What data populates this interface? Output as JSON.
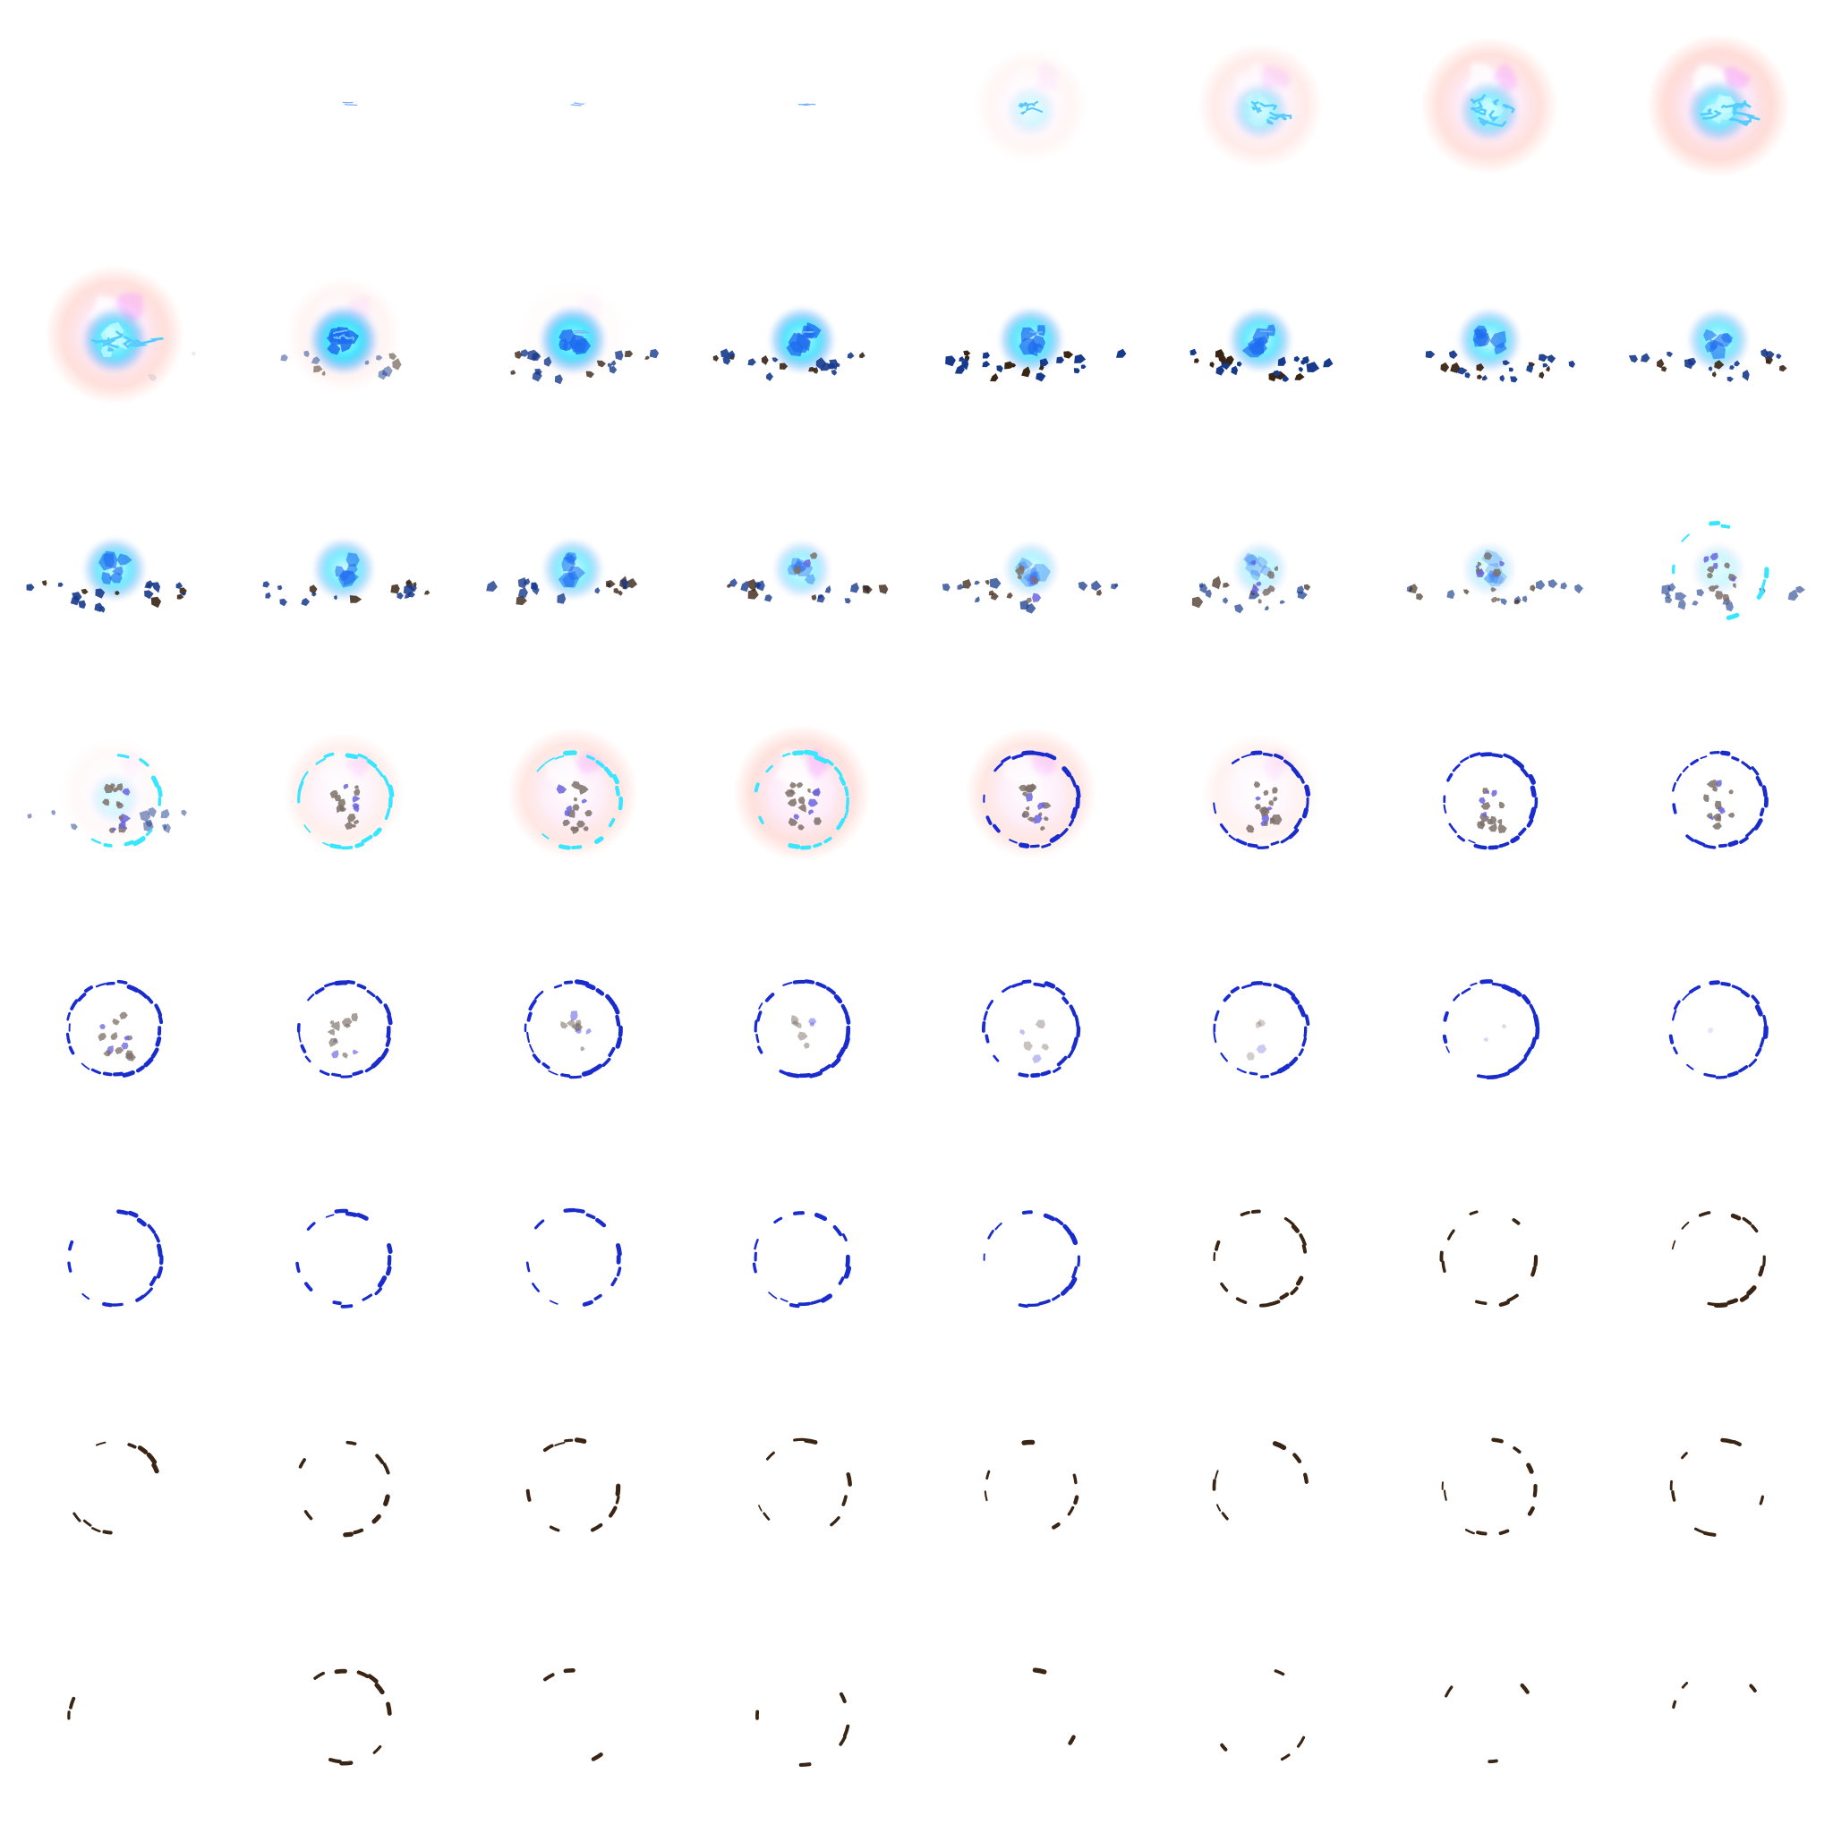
{
  "sprite_sheet": {
    "columns": 8,
    "rows": 8,
    "colors": {
      "background": "#ffffff",
      "cyan": "#38e6ff",
      "cyan_light": "#c8fbff",
      "blue": "#1e6cf0",
      "deep_blue": "#1a2bd6",
      "navy": "#173a8c",
      "halo_pink": "#ffc6bd",
      "halo_magenta": "#f05cff",
      "cloud_pink": "#fde6f6",
      "purple": "#6a64e0",
      "brown": "#3a2414",
      "debris_gray": "#7e7068"
    },
    "frames": [
      {
        "phase": "empty",
        "seed": 1,
        "spark": 0,
        "halo": 0,
        "core": 0,
        "debris": 0,
        "ring": 0,
        "particles": 0,
        "particleFade": 1,
        "ringColor": "blue"
      },
      {
        "phase": "spark",
        "seed": 2,
        "spark": 0.12,
        "halo": 0,
        "core": 0,
        "debris": 0,
        "ring": 0,
        "particles": 0,
        "particleFade": 1,
        "ringColor": "blue"
      },
      {
        "phase": "spark",
        "seed": 3,
        "spark": 0.12,
        "halo": 0,
        "core": 0,
        "debris": 0,
        "ring": 0,
        "particles": 0,
        "particleFade": 1,
        "ringColor": "blue"
      },
      {
        "phase": "spark",
        "seed": 4,
        "spark": 0.14,
        "halo": 0,
        "core": 0,
        "debris": 0,
        "ring": 0,
        "particles": 0,
        "particleFade": 1,
        "ringColor": "blue"
      },
      {
        "phase": "flash",
        "seed": 5,
        "spark": 0.55,
        "halo": 0.25,
        "core": 0.2,
        "debris": 0,
        "ring": 0,
        "particles": 0,
        "particleFade": 1,
        "ringColor": "blue"
      },
      {
        "phase": "flash",
        "seed": 6,
        "spark": 0.8,
        "halo": 0.55,
        "core": 0.45,
        "debris": 0,
        "ring": 0,
        "particles": 0,
        "particleFade": 1,
        "ringColor": "blue"
      },
      {
        "phase": "flash",
        "seed": 7,
        "spark": 0.9,
        "halo": 0.85,
        "core": 0.6,
        "debris": 0,
        "ring": 0,
        "particles": 0,
        "particleFade": 1,
        "ringColor": "blue"
      },
      {
        "phase": "flash",
        "seed": 8,
        "spark": 0.9,
        "halo": 1,
        "core": 0.7,
        "debris": 0,
        "ring": 0,
        "particles": 0,
        "particleFade": 1,
        "ringColor": "blue"
      },
      {
        "phase": "flash",
        "seed": 9,
        "spark": 0.9,
        "halo": 0.9,
        "core": 0.85,
        "debris": 0.1,
        "ring": 0,
        "particles": 0,
        "particleFade": 1,
        "ringColor": "blue"
      },
      {
        "phase": "burst",
        "seed": 10,
        "spark": 0.4,
        "halo": 0.3,
        "core": 1,
        "debris": 0.5,
        "ring": 0,
        "particles": 0,
        "particleFade": 1,
        "ringColor": "blue"
      },
      {
        "phase": "burst",
        "seed": 11,
        "spark": 0.2,
        "halo": 0.1,
        "core": 0.95,
        "debris": 0.8,
        "ring": 0,
        "particles": 0,
        "particleFade": 1,
        "ringColor": "blue"
      },
      {
        "phase": "burst",
        "seed": 12,
        "spark": 0.15,
        "halo": 0,
        "core": 0.9,
        "debris": 0.9,
        "ring": 0,
        "particles": 0,
        "particleFade": 1,
        "ringColor": "blue"
      },
      {
        "phase": "burst",
        "seed": 13,
        "spark": 0.1,
        "halo": 0,
        "core": 0.85,
        "debris": 1,
        "ring": 0,
        "particles": 0,
        "particleFade": 1,
        "ringColor": "blue"
      },
      {
        "phase": "burst",
        "seed": 14,
        "spark": 0.05,
        "halo": 0,
        "core": 0.8,
        "debris": 1,
        "ring": 0,
        "particles": 0,
        "particleFade": 1,
        "ringColor": "blue"
      },
      {
        "phase": "burst",
        "seed": 15,
        "spark": 0,
        "halo": 0,
        "core": 0.75,
        "debris": 0.95,
        "ring": 0,
        "particles": 0,
        "particleFade": 1,
        "ringColor": "blue"
      },
      {
        "phase": "burst",
        "seed": 16,
        "spark": 0,
        "halo": 0,
        "core": 0.7,
        "debris": 0.9,
        "ring": 0,
        "particles": 0,
        "particleFade": 1,
        "ringColor": "blue"
      },
      {
        "phase": "burst",
        "seed": 17,
        "spark": 0,
        "halo": 0,
        "core": 0.75,
        "debris": 0.9,
        "ring": 0,
        "particles": 0,
        "particleFade": 1,
        "ringColor": "blue"
      },
      {
        "phase": "burst",
        "seed": 18,
        "spark": 0,
        "halo": 0,
        "core": 0.7,
        "debris": 0.85,
        "ring": 0,
        "particles": 0,
        "particleFade": 1,
        "ringColor": "blue"
      },
      {
        "phase": "burst",
        "seed": 19,
        "spark": 0,
        "halo": 0,
        "core": 0.65,
        "debris": 0.8,
        "ring": 0,
        "particles": 0,
        "particleFade": 1,
        "ringColor": "blue"
      },
      {
        "phase": "burst",
        "seed": 20,
        "spark": 0,
        "halo": 0,
        "core": 0.5,
        "debris": 0.8,
        "ring": 0,
        "particles": 0.2,
        "particleFade": 1,
        "ringColor": "blue"
      },
      {
        "phase": "burst",
        "seed": 21,
        "spark": 0,
        "halo": 0,
        "core": 0.4,
        "debris": 0.75,
        "ring": 0,
        "particles": 0.4,
        "particleFade": 1,
        "ringColor": "blue"
      },
      {
        "phase": "burst",
        "seed": 22,
        "spark": 0,
        "halo": 0,
        "core": 0.35,
        "debris": 0.7,
        "ring": 0,
        "particles": 0.5,
        "particleFade": 1,
        "ringColor": "blue"
      },
      {
        "phase": "burst",
        "seed": 23,
        "spark": 0,
        "halo": 0,
        "core": 0.3,
        "debris": 0.65,
        "ring": 0,
        "particles": 0.6,
        "particleFade": 1,
        "ringColor": "blue"
      },
      {
        "phase": "ring",
        "seed": 24,
        "spark": 0,
        "halo": 0,
        "core": 0.25,
        "debris": 0.6,
        "ring": 0.35,
        "particles": 0.7,
        "particleFade": 1,
        "ringColor": "cyan"
      },
      {
        "phase": "ring",
        "seed": 25,
        "spark": 0,
        "halo": 0.15,
        "core": 0.2,
        "debris": 0.5,
        "ring": 0.45,
        "particles": 0.8,
        "particleFade": 1,
        "ringColor": "cyan"
      },
      {
        "phase": "ring",
        "seed": 26,
        "spark": 0,
        "halo": 0.45,
        "core": 0,
        "debris": 0,
        "ring": 0.5,
        "particles": 0.9,
        "particleFade": 1,
        "ringColor": "cyan"
      },
      {
        "phase": "ring",
        "seed": 27,
        "spark": 0,
        "halo": 0.7,
        "core": 0,
        "debris": 0,
        "ring": 0.6,
        "particles": 0.9,
        "particleFade": 1,
        "ringColor": "cyan"
      },
      {
        "phase": "ring",
        "seed": 28,
        "spark": 0,
        "halo": 0.85,
        "core": 0,
        "debris": 0,
        "ring": 0.7,
        "particles": 0.9,
        "particleFade": 1,
        "ringColor": "cyan"
      },
      {
        "phase": "ring",
        "seed": 29,
        "spark": 0,
        "halo": 0.7,
        "core": 0,
        "debris": 0,
        "ring": 0.85,
        "particles": 0.9,
        "particleFade": 1,
        "ringColor": "blue"
      },
      {
        "phase": "ring",
        "seed": 30,
        "spark": 0,
        "halo": 0.35,
        "core": 0,
        "debris": 0,
        "ring": 1,
        "particles": 0.9,
        "particleFade": 1,
        "ringColor": "blue"
      },
      {
        "phase": "ring",
        "seed": 31,
        "spark": 0,
        "halo": 0,
        "core": 0,
        "debris": 0,
        "ring": 1,
        "particles": 0.85,
        "particleFade": 1,
        "ringColor": "blue"
      },
      {
        "phase": "ring",
        "seed": 32,
        "spark": 0,
        "halo": 0,
        "core": 0,
        "debris": 0,
        "ring": 1,
        "particles": 0.8,
        "particleFade": 1,
        "ringColor": "blue"
      },
      {
        "phase": "fade",
        "seed": 33,
        "spark": 0,
        "halo": 0,
        "core": 0,
        "debris": 0,
        "ring": 1,
        "particles": 0.7,
        "particleFade": 0.9,
        "ringColor": "blue"
      },
      {
        "phase": "fade",
        "seed": 34,
        "spark": 0,
        "halo": 0,
        "core": 0,
        "debris": 0,
        "ring": 1,
        "particles": 0.6,
        "particleFade": 0.8,
        "ringColor": "blue"
      },
      {
        "phase": "fade",
        "seed": 35,
        "spark": 0,
        "halo": 0,
        "core": 0,
        "debris": 0,
        "ring": 1,
        "particles": 0.5,
        "particleFade": 0.7,
        "ringColor": "blue"
      },
      {
        "phase": "fade",
        "seed": 36,
        "spark": 0,
        "halo": 0,
        "core": 0,
        "debris": 0,
        "ring": 1,
        "particles": 0.4,
        "particleFade": 0.6,
        "ringColor": "blue"
      },
      {
        "phase": "fade",
        "seed": 37,
        "spark": 0,
        "halo": 0,
        "core": 0,
        "debris": 0,
        "ring": 1,
        "particles": 0.3,
        "particleFade": 0.5,
        "ringColor": "blue"
      },
      {
        "phase": "fade",
        "seed": 38,
        "spark": 0,
        "halo": 0,
        "core": 0,
        "debris": 0,
        "ring": 0.95,
        "particles": 0.2,
        "particleFade": 0.4,
        "ringColor": "blue"
      },
      {
        "phase": "fade",
        "seed": 39,
        "spark": 0,
        "halo": 0,
        "core": 0,
        "debris": 0,
        "ring": 0.9,
        "particles": 0.1,
        "particleFade": 0.3,
        "ringColor": "blue"
      },
      {
        "phase": "fade",
        "seed": 40,
        "spark": 0,
        "halo": 0,
        "core": 0,
        "debris": 0,
        "ring": 0.85,
        "particles": 0.05,
        "particleFade": 0.2,
        "ringColor": "blue"
      },
      {
        "phase": "fade",
        "seed": 41,
        "spark": 0,
        "halo": 0,
        "core": 0,
        "debris": 0,
        "ring": 0.75,
        "particles": 0,
        "particleFade": 0,
        "ringColor": "blue"
      },
      {
        "phase": "fade",
        "seed": 42,
        "spark": 0,
        "halo": 0,
        "core": 0,
        "debris": 0,
        "ring": 0.72,
        "particles": 0,
        "particleFade": 0,
        "ringColor": "blue"
      },
      {
        "phase": "fade",
        "seed": 43,
        "spark": 0,
        "halo": 0,
        "core": 0,
        "debris": 0,
        "ring": 0.7,
        "particles": 0,
        "particleFade": 0,
        "ringColor": "blue"
      },
      {
        "phase": "fade",
        "seed": 44,
        "spark": 0,
        "halo": 0,
        "core": 0,
        "debris": 0,
        "ring": 0.68,
        "particles": 0,
        "particleFade": 0,
        "ringColor": "blue"
      },
      {
        "phase": "fade",
        "seed": 45,
        "spark": 0,
        "halo": 0,
        "core": 0,
        "debris": 0,
        "ring": 0.65,
        "particles": 0,
        "particleFade": 0,
        "ringColor": "blue"
      },
      {
        "phase": "fade",
        "seed": 46,
        "spark": 0,
        "halo": 0,
        "core": 0,
        "debris": 0,
        "ring": 0.55,
        "particles": 0,
        "particleFade": 0,
        "ringColor": "brown"
      },
      {
        "phase": "fade",
        "seed": 47,
        "spark": 0,
        "halo": 0,
        "core": 0,
        "debris": 0,
        "ring": 0.5,
        "particles": 0,
        "particleFade": 0,
        "ringColor": "brown"
      },
      {
        "phase": "fade",
        "seed": 48,
        "spark": 0,
        "halo": 0,
        "core": 0,
        "debris": 0,
        "ring": 0.48,
        "particles": 0,
        "particleFade": 0,
        "ringColor": "brown"
      },
      {
        "phase": "fade",
        "seed": 49,
        "spark": 0,
        "halo": 0,
        "core": 0,
        "debris": 0,
        "ring": 0.42,
        "particles": 0,
        "particleFade": 0,
        "ringColor": "brown"
      },
      {
        "phase": "fade",
        "seed": 50,
        "spark": 0,
        "halo": 0,
        "core": 0,
        "debris": 0,
        "ring": 0.42,
        "particles": 0,
        "particleFade": 0,
        "ringColor": "brown"
      },
      {
        "phase": "fade",
        "seed": 51,
        "spark": 0,
        "halo": 0,
        "core": 0,
        "debris": 0,
        "ring": 0.4,
        "particles": 0,
        "particleFade": 0,
        "ringColor": "brown"
      },
      {
        "phase": "fade",
        "seed": 52,
        "spark": 0,
        "halo": 0,
        "core": 0,
        "debris": 0,
        "ring": 0.38,
        "particles": 0,
        "particleFade": 0,
        "ringColor": "brown"
      },
      {
        "phase": "fade",
        "seed": 53,
        "spark": 0,
        "halo": 0,
        "core": 0,
        "debris": 0,
        "ring": 0.34,
        "particles": 0,
        "particleFade": 0,
        "ringColor": "brown"
      },
      {
        "phase": "fade",
        "seed": 54,
        "spark": 0,
        "halo": 0,
        "core": 0,
        "debris": 0,
        "ring": 0.32,
        "particles": 0,
        "particleFade": 0,
        "ringColor": "brown"
      },
      {
        "phase": "fade",
        "seed": 55,
        "spark": 0,
        "halo": 0,
        "core": 0,
        "debris": 0,
        "ring": 0.3,
        "particles": 0,
        "particleFade": 0,
        "ringColor": "brown"
      },
      {
        "phase": "fade",
        "seed": 56,
        "spark": 0,
        "halo": 0,
        "core": 0,
        "debris": 0,
        "ring": 0.28,
        "particles": 0,
        "particleFade": 0,
        "ringColor": "brown"
      },
      {
        "phase": "fade",
        "seed": 57,
        "spark": 0,
        "halo": 0,
        "core": 0,
        "debris": 0,
        "ring": 0.26,
        "particles": 0,
        "particleFade": 0,
        "ringColor": "brown"
      },
      {
        "phase": "fade",
        "seed": 58,
        "spark": 0,
        "halo": 0,
        "core": 0,
        "debris": 0,
        "ring": 0.25,
        "particles": 0,
        "particleFade": 0,
        "ringColor": "brown"
      },
      {
        "phase": "fade",
        "seed": 59,
        "spark": 0,
        "halo": 0,
        "core": 0,
        "debris": 0,
        "ring": 0.2,
        "particles": 0,
        "particleFade": 0,
        "ringColor": "brown"
      },
      {
        "phase": "fade",
        "seed": 60,
        "spark": 0,
        "halo": 0,
        "core": 0,
        "debris": 0,
        "ring": 0.18,
        "particles": 0,
        "particleFade": 0,
        "ringColor": "brown"
      },
      {
        "phase": "fade",
        "seed": 61,
        "spark": 0,
        "halo": 0,
        "core": 0,
        "debris": 0,
        "ring": 0.16,
        "particles": 0,
        "particleFade": 0,
        "ringColor": "brown"
      },
      {
        "phase": "fade",
        "seed": 62,
        "spark": 0,
        "halo": 0,
        "core": 0,
        "debris": 0,
        "ring": 0.15,
        "particles": 0,
        "particleFade": 0,
        "ringColor": "brown"
      },
      {
        "phase": "fade",
        "seed": 63,
        "spark": 0,
        "halo": 0,
        "core": 0,
        "debris": 0,
        "ring": 0.13,
        "particles": 0,
        "particleFade": 0,
        "ringColor": "brown"
      },
      {
        "phase": "fade",
        "seed": 64,
        "spark": 0,
        "halo": 0,
        "core": 0,
        "debris": 0,
        "ring": 0.12,
        "particles": 0,
        "particleFade": 0,
        "ringColor": "brown"
      }
    ]
  }
}
